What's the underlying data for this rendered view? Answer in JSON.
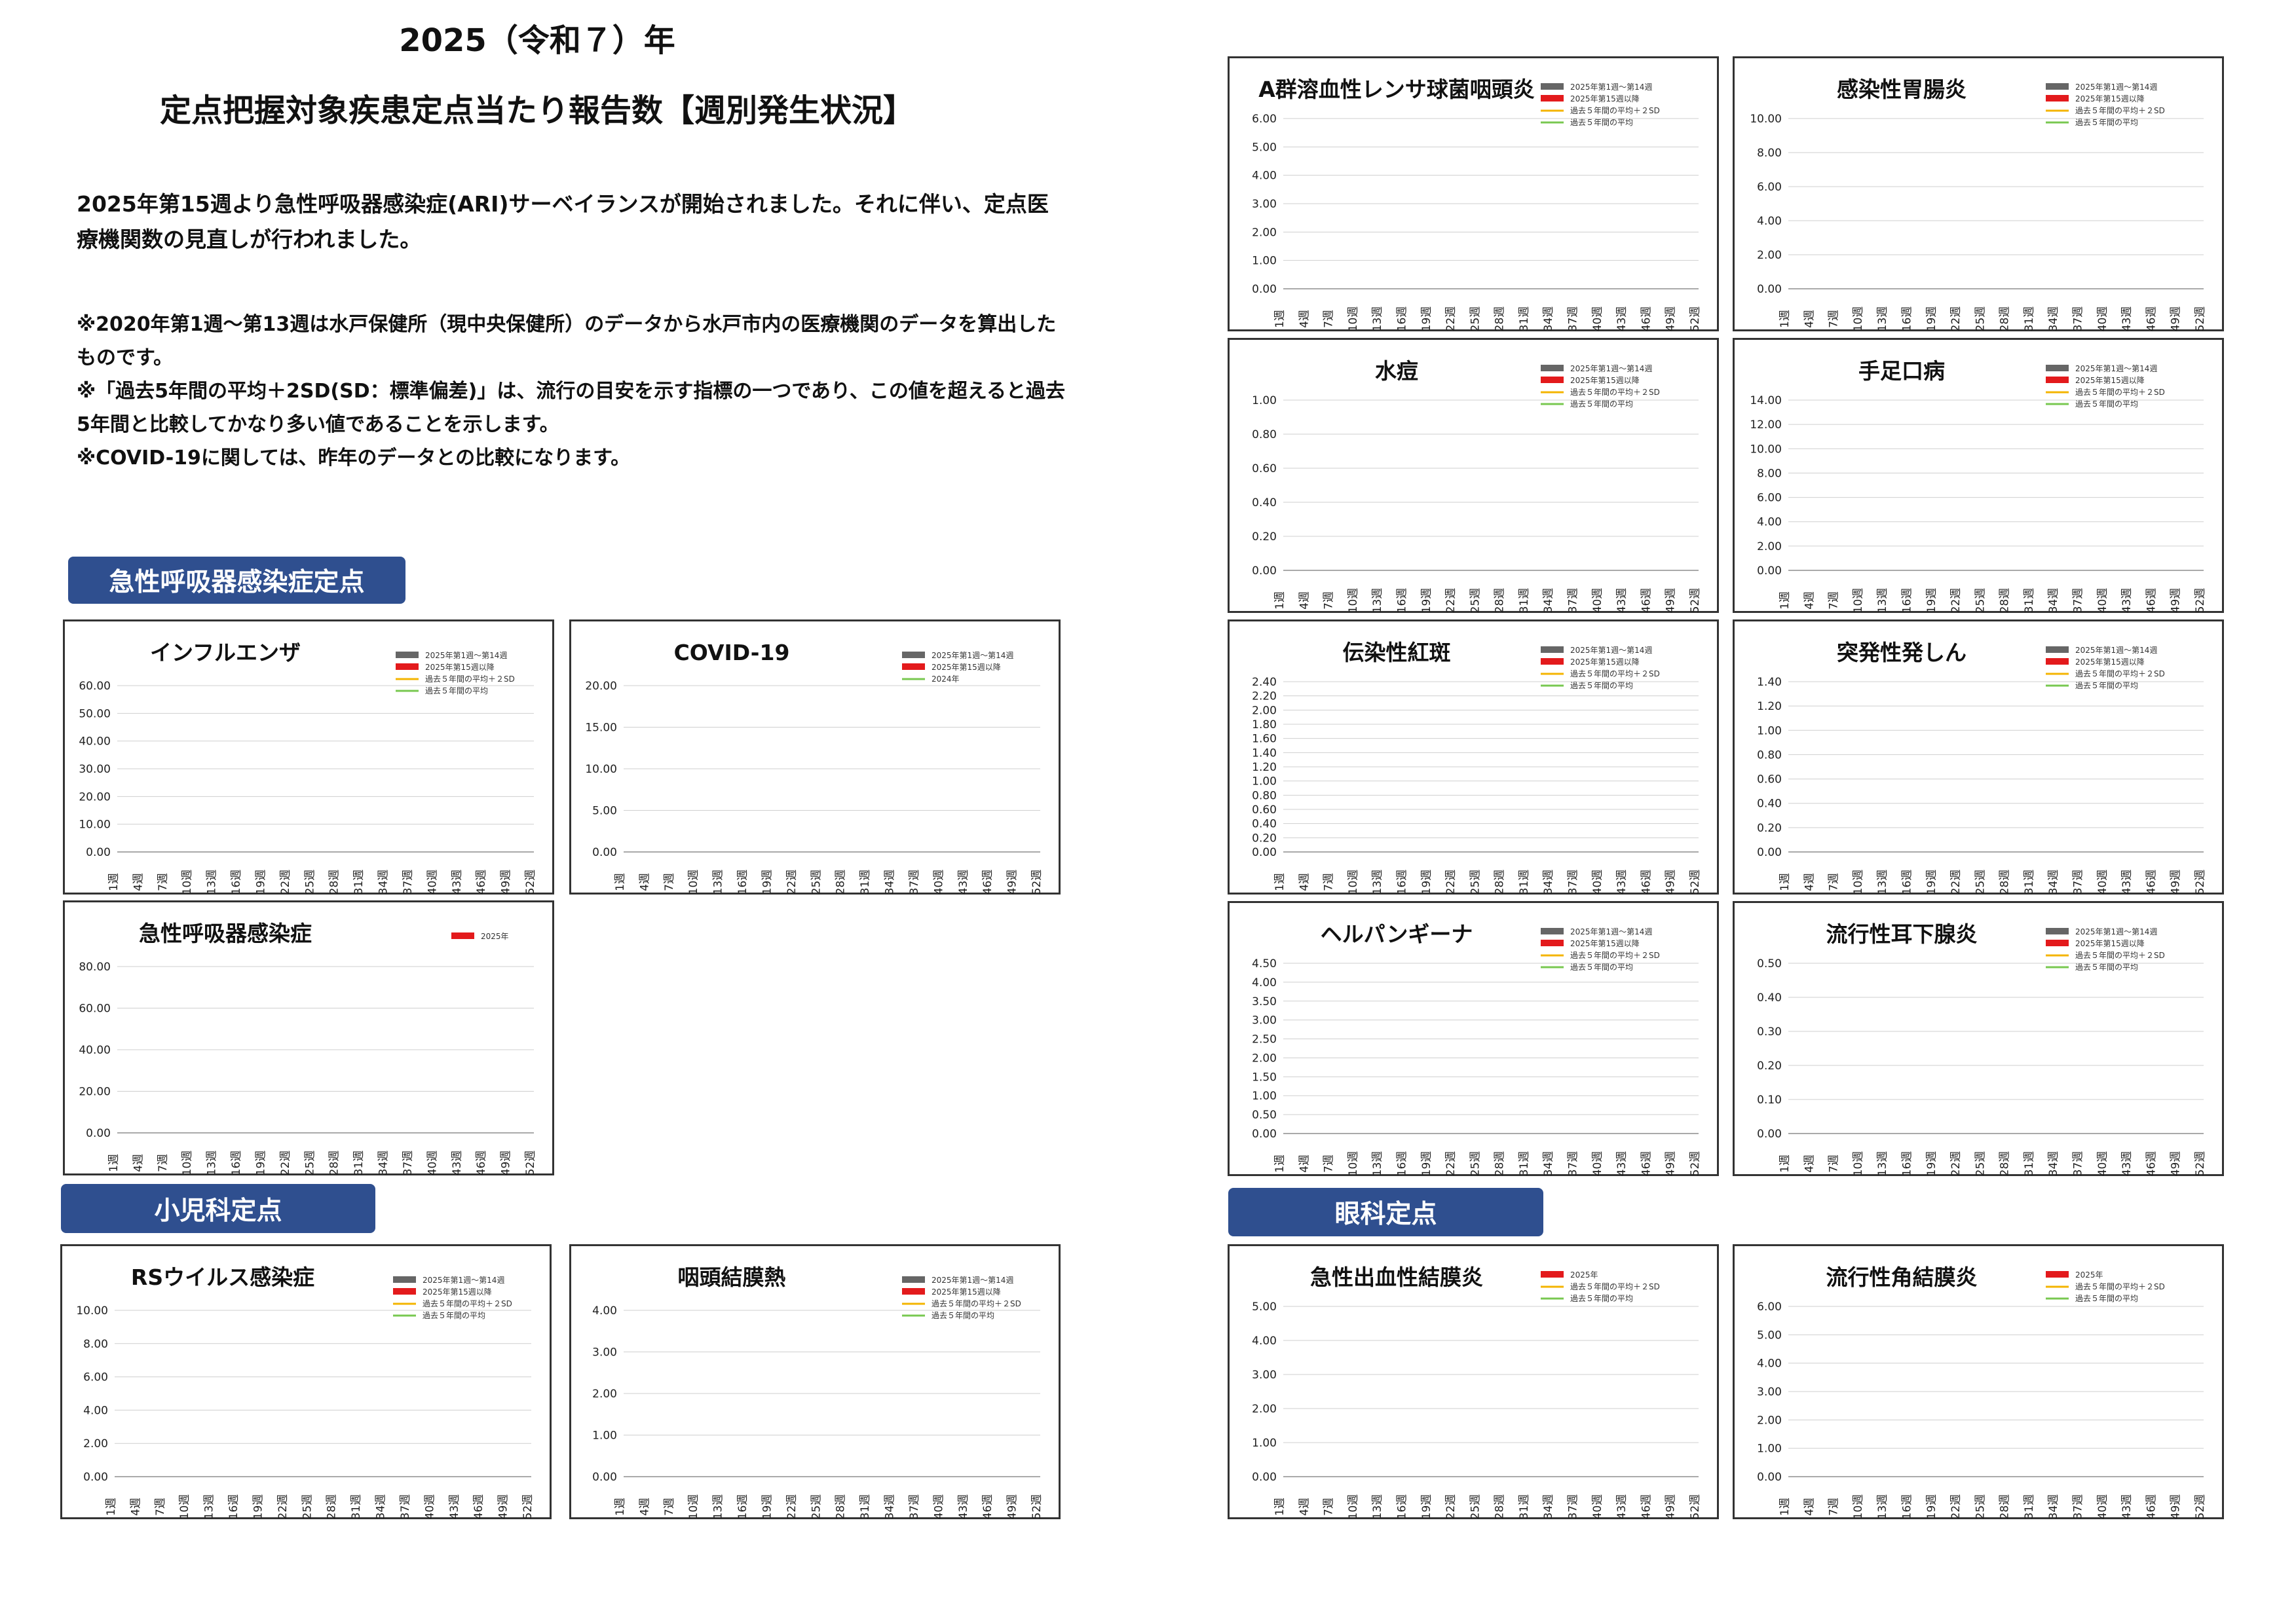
{
  "title": {
    "line1": "2025（令和７）年",
    "line2": "定点把握対象疾患定点当たり報告数【週別発生状況】"
  },
  "description": "2025年第15週より急性呼吸器感染症(ARI)サーベイランスが開始されました。それに伴い、定点医療機関数の見直しが行われました。",
  "notes": [
    "※2020年第1週～第13週は水戸保健所（現中央保健所）のデータから水戸市内の医療機関のデータを算出したものです。",
    "※「過去5年間の平均＋2SD(SD：標準偏差)」は、流行の目安を示す指標の一つであり、この値を超えると過去5年間と比較してかなり多い値であることを示します。",
    "※COVID-19に関しては、昨年のデータとの比較になります。"
  ],
  "sections": {
    "ari": "急性呼吸器感染症定点",
    "pediatric": "小児科定点",
    "eye": "眼科定点"
  },
  "chart_data": [
    {
      "id": "influenza",
      "type": "bar-line",
      "title": "インフルエンザ",
      "yTicks": [
        "60.00",
        "50.00",
        "40.00",
        "30.00",
        "20.00",
        "10.00",
        "0.00"
      ],
      "xTicks": [
        "1週",
        "4週",
        "7週",
        "10週",
        "13週",
        "16週",
        "19週",
        "22週",
        "25週",
        "28週",
        "31週",
        "34週",
        "37週",
        "40週",
        "43週",
        "46週",
        "49週",
        "52週"
      ],
      "legend": [
        "2025年第1週～第14週",
        "2025年第15週以降",
        "過去５年間の平均＋２SD",
        "過去５年間の平均"
      ],
      "colors": {
        "gray": "#666666",
        "red": "#e31a1c",
        "yellow": "#f4b400",
        "green": "#78c850"
      }
    },
    {
      "id": "covid19",
      "type": "bar-line",
      "title": "COVID-19",
      "yTicks": [
        "20.00",
        "15.00",
        "10.00",
        "5.00",
        "0.00"
      ],
      "xTicks": [
        "1週",
        "4週",
        "7週",
        "10週",
        "13週",
        "16週",
        "19週",
        "22週",
        "25週",
        "28週",
        "31週",
        "34週",
        "37週",
        "40週",
        "43週",
        "46週",
        "49週",
        "52週"
      ],
      "legend": [
        "2025年第1週～第14週",
        "2025年第15週以降",
        "2024年"
      ]
    },
    {
      "id": "ari",
      "type": "bar",
      "title": "急性呼吸器感染症",
      "yTicks": [
        "80.00",
        "60.00",
        "40.00",
        "20.00",
        "0.00"
      ],
      "xTicks": [
        "1週",
        "4週",
        "7週",
        "10週",
        "13週",
        "16週",
        "19週",
        "22週",
        "25週",
        "28週",
        "31週",
        "34週",
        "37週",
        "40週",
        "43週",
        "46週",
        "49週",
        "52週"
      ],
      "legend": [
        "2025年"
      ]
    },
    {
      "id": "rsv",
      "type": "bar-line",
      "title": "RSウイルス感染症",
      "yTicks": [
        "10.00",
        "8.00",
        "6.00",
        "4.00",
        "2.00",
        "0.00"
      ],
      "xTicks": [
        "1週",
        "4週",
        "7週",
        "10週",
        "13週",
        "16週",
        "19週",
        "22週",
        "25週",
        "28週",
        "31週",
        "34週",
        "37週",
        "40週",
        "43週",
        "46週",
        "49週",
        "52週"
      ],
      "legend": [
        "2025年第1週～第14週",
        "2025年第15週以降",
        "過去５年間の平均＋２SD",
        "過去５年間の平均"
      ]
    },
    {
      "id": "pharyngoconjunctival",
      "type": "bar-line",
      "title": "咽頭結膜熱",
      "yTicks": [
        "4.00",
        "3.00",
        "2.00",
        "1.00",
        "0.00"
      ],
      "xTicks": [
        "1週",
        "4週",
        "7週",
        "10週",
        "13週",
        "16週",
        "19週",
        "22週",
        "25週",
        "28週",
        "31週",
        "34週",
        "37週",
        "40週",
        "43週",
        "46週",
        "49週",
        "52週"
      ],
      "legend": [
        "2025年第1週～第14週",
        "2025年第15週以降",
        "過去５年間の平均＋２SD",
        "過去５年間の平均"
      ]
    },
    {
      "id": "group-a",
      "type": "bar-line",
      "title": "A群溶血性レンサ球菌咽頭炎",
      "yTicks": [
        "6.00",
        "5.00",
        "4.00",
        "3.00",
        "2.00",
        "1.00",
        "0.00"
      ],
      "xTicks": [
        "1週",
        "4週",
        "7週",
        "10週",
        "13週",
        "16週",
        "19週",
        "22週",
        "25週",
        "28週",
        "31週",
        "34週",
        "37週",
        "40週",
        "43週",
        "46週",
        "49週",
        "52週"
      ],
      "legend": [
        "2025年第1週～第14週",
        "2025年第15週以降",
        "過去５年間の平均＋２SD",
        "過去５年間の平均"
      ]
    },
    {
      "id": "gastroenteritis",
      "type": "bar-line",
      "title": "感染性胃腸炎",
      "yTicks": [
        "10.00",
        "8.00",
        "6.00",
        "4.00",
        "2.00",
        "0.00"
      ],
      "xTicks": [
        "1週",
        "4週",
        "7週",
        "10週",
        "13週",
        "16週",
        "19週",
        "22週",
        "25週",
        "28週",
        "31週",
        "34週",
        "37週",
        "40週",
        "43週",
        "46週",
        "49週",
        "52週"
      ],
      "legend": [
        "2025年第1週～第14週",
        "2025年第15週以降",
        "過去５年間の平均＋２SD",
        "過去５年間の平均"
      ]
    },
    {
      "id": "varicella",
      "type": "bar-line",
      "title": "水痘",
      "yTicks": [
        "1.00",
        "0.80",
        "0.60",
        "0.40",
        "0.20",
        "0.00"
      ],
      "xTicks": [
        "1週",
        "4週",
        "7週",
        "10週",
        "13週",
        "16週",
        "19週",
        "22週",
        "25週",
        "28週",
        "31週",
        "34週",
        "37週",
        "40週",
        "43週",
        "46週",
        "49週",
        "52週"
      ],
      "legend": [
        "2025年第1週～第14週",
        "2025年第15週以降",
        "過去５年間の平均＋２SD",
        "過去５年間の平均"
      ]
    },
    {
      "id": "hfmd",
      "type": "bar-line",
      "title": "手足口病",
      "yTicks": [
        "14.00",
        "12.00",
        "10.00",
        "8.00",
        "6.00",
        "4.00",
        "2.00",
        "0.00"
      ],
      "xTicks": [
        "1週",
        "4週",
        "7週",
        "10週",
        "13週",
        "16週",
        "19週",
        "22週",
        "25週",
        "28週",
        "31週",
        "34週",
        "37週",
        "40週",
        "43週",
        "46週",
        "49週",
        "52週"
      ],
      "legend": [
        "2025年第1週～第14週",
        "2025年第15週以降",
        "過去５年間の平均＋２SD",
        "過去５年間の平均"
      ]
    },
    {
      "id": "erythema",
      "type": "bar-line",
      "title": "伝染性紅斑",
      "yTicks": [
        "2.40",
        "2.20",
        "2.00",
        "1.80",
        "1.60",
        "1.40",
        "1.20",
        "1.00",
        "0.80",
        "0.60",
        "0.40",
        "0.20",
        "0.00"
      ],
      "xTicks": [
        "1週",
        "4週",
        "7週",
        "10週",
        "13週",
        "16週",
        "19週",
        "22週",
        "25週",
        "28週",
        "31週",
        "34週",
        "37週",
        "40週",
        "43週",
        "46週",
        "49週",
        "52週"
      ],
      "legend": [
        "2025年第1週～第14週",
        "2025年第15週以降",
        "過去５年間の平均＋２SD",
        "過去５年間の平均"
      ]
    },
    {
      "id": "exanthem",
      "type": "bar-line",
      "title": "突発性発しん",
      "yTicks": [
        "1.40",
        "1.20",
        "1.00",
        "0.80",
        "0.60",
        "0.40",
        "0.20",
        "0.00"
      ],
      "xTicks": [
        "1週",
        "4週",
        "7週",
        "10週",
        "13週",
        "16週",
        "19週",
        "22週",
        "25週",
        "28週",
        "31週",
        "34週",
        "37週",
        "40週",
        "43週",
        "46週",
        "49週",
        "52週"
      ],
      "legend": [
        "2025年第1週～第14週",
        "2025年第15週以降",
        "過去５年間の平均＋２SD",
        "過去５年間の平均"
      ]
    },
    {
      "id": "herpangina",
      "type": "bar-line",
      "title": "ヘルパンギーナ",
      "yTicks": [
        "4.50",
        "4.00",
        "3.50",
        "3.00",
        "2.50",
        "2.00",
        "1.50",
        "1.00",
        "0.50",
        "0.00"
      ],
      "xTicks": [
        "1週",
        "4週",
        "7週",
        "10週",
        "13週",
        "16週",
        "19週",
        "22週",
        "25週",
        "28週",
        "31週",
        "34週",
        "37週",
        "40週",
        "43週",
        "46週",
        "49週",
        "52週"
      ],
      "legend": [
        "2025年第1週～第14週",
        "2025年第15週以降",
        "過去５年間の平均＋２SD",
        "過去５年間の平均"
      ]
    },
    {
      "id": "mumps",
      "type": "bar-line",
      "title": "流行性耳下腺炎",
      "yTicks": [
        "0.50",
        "0.40",
        "0.30",
        "0.20",
        "0.10",
        "0.00"
      ],
      "xTicks": [
        "1週",
        "4週",
        "7週",
        "10週",
        "13週",
        "16週",
        "19週",
        "22週",
        "25週",
        "28週",
        "31週",
        "34週",
        "37週",
        "40週",
        "43週",
        "46週",
        "49週",
        "52週"
      ],
      "legend": [
        "2025年第1週～第14週",
        "2025年第15週以降",
        "過去５年間の平均＋２SD",
        "過去５年間の平均"
      ]
    },
    {
      "id": "hemorrhagic-conj",
      "type": "bar-line",
      "title": "急性出血性結膜炎",
      "yTicks": [
        "5.00",
        "4.00",
        "3.00",
        "2.00",
        "1.00",
        "0.00"
      ],
      "xTicks": [
        "1週",
        "4週",
        "7週",
        "10週",
        "13週",
        "16週",
        "19週",
        "22週",
        "25週",
        "28週",
        "31週",
        "34週",
        "37週",
        "40週",
        "43週",
        "46週",
        "49週",
        "52週"
      ],
      "legend": [
        "2025年",
        "過去５年間の平均＋２SD",
        "過去５年間の平均"
      ]
    },
    {
      "id": "epidemic-keratoconj",
      "type": "bar-line",
      "title": "流行性角結膜炎",
      "yTicks": [
        "6.00",
        "5.00",
        "4.00",
        "3.00",
        "2.00",
        "1.00",
        "0.00"
      ],
      "xTicks": [
        "1週",
        "4週",
        "7週",
        "10週",
        "13週",
        "16週",
        "19週",
        "22週",
        "25週",
        "28週",
        "31週",
        "34週",
        "37週",
        "40週",
        "43週",
        "46週",
        "49週",
        "52週"
      ],
      "legend": [
        "2025年",
        "過去５年間の平均＋２SD",
        "過去５年間の平均"
      ]
    }
  ]
}
